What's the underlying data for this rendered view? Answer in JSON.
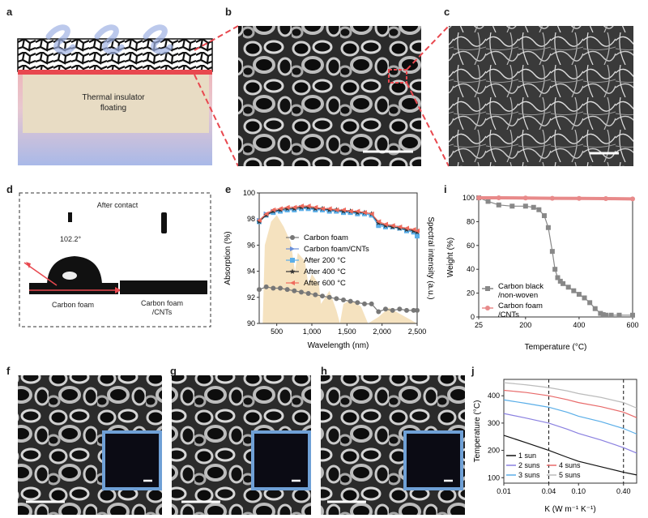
{
  "panels": {
    "a": {
      "letter": "a",
      "insulator_label_1": "Thermal insulator",
      "insulator_label_2": "floating"
    },
    "b": {
      "letter": "b"
    },
    "c": {
      "letter": "c"
    },
    "d": {
      "letter": "d",
      "title": "After contact",
      "angle": "102.2°",
      "left_label": "Carbon foam",
      "right_label_1": "Carbon foam",
      "right_label_2": "/CNTs"
    },
    "e": {
      "letter": "e"
    },
    "i": {
      "letter": "i"
    },
    "f": {
      "letter": "f"
    },
    "g": {
      "letter": "g"
    },
    "h": {
      "letter": "h"
    },
    "j": {
      "letter": "j"
    }
  },
  "colors": {
    "red_accent": "#e8484f",
    "inset_border": "#6fa0d6",
    "spectrum_fill": "#f4dfb8",
    "carbon_black": "#888888",
    "carbon_foam_cnt_tga": "#e88a8a"
  },
  "chart_data": [
    {
      "type": "line",
      "panel": "e",
      "xlabel": "Wavelength (nm)",
      "ylabel": "Absorption (%)",
      "y2label": "Spectral intensity (a.u.)",
      "xlim": [
        250,
        2500
      ],
      "ylim": [
        90,
        100
      ],
      "xticks": [
        500,
        1000,
        1500,
        2000,
        2500
      ],
      "xtick_labels": [
        "500",
        "1,000",
        "1,500",
        "2,000",
        "2,500"
      ],
      "yticks": [
        90,
        92,
        94,
        96,
        98,
        100
      ],
      "legend_position": "center",
      "x": [
        250,
        350,
        450,
        550,
        650,
        750,
        850,
        950,
        1050,
        1150,
        1250,
        1350,
        1450,
        1550,
        1650,
        1750,
        1850,
        1950,
        2050,
        2150,
        2250,
        2350,
        2450,
        2500
      ],
      "series": [
        {
          "name": "Carbon foam",
          "color": "#777777",
          "marker": "circle",
          "values": [
            92.6,
            92.8,
            92.7,
            92.7,
            92.6,
            92.5,
            92.4,
            92.3,
            92.2,
            92.1,
            92.0,
            91.9,
            91.8,
            91.7,
            91.6,
            91.5,
            91.5,
            90.9,
            91.1,
            91.0,
            91.1,
            91.0,
            91.0,
            91.0
          ]
        },
        {
          "name": "Carbon foam/CNTs",
          "color": "#6a8fd8",
          "marker": "triangle-right",
          "values": [
            97.9,
            98.4,
            98.6,
            98.6,
            98.7,
            98.8,
            98.9,
            98.8,
            98.8,
            98.7,
            98.7,
            98.6,
            98.6,
            98.5,
            98.5,
            98.4,
            98.3,
            97.6,
            97.5,
            97.4,
            97.3,
            97.2,
            97.1,
            96.8
          ]
        },
        {
          "name": "After 200 °C",
          "color": "#5aaee8",
          "marker": "square",
          "values": [
            97.8,
            98.3,
            98.5,
            98.6,
            98.7,
            98.7,
            98.8,
            98.8,
            98.7,
            98.7,
            98.6,
            98.6,
            98.5,
            98.5,
            98.4,
            98.4,
            98.3,
            97.5,
            97.4,
            97.4,
            97.3,
            97.1,
            97.0,
            96.7
          ]
        },
        {
          "name": "After 400 °C",
          "color": "#333333",
          "marker": "star",
          "values": [
            97.8,
            98.3,
            98.6,
            98.7,
            98.8,
            98.8,
            98.9,
            98.9,
            98.8,
            98.8,
            98.7,
            98.7,
            98.6,
            98.6,
            98.5,
            98.5,
            98.4,
            97.7,
            97.5,
            97.4,
            97.3,
            97.2,
            97.1,
            97.0
          ]
        },
        {
          "name": "After 600 °C",
          "color": "#ef6a5c",
          "marker": "triangle-left",
          "values": [
            97.9,
            98.4,
            98.7,
            98.8,
            98.9,
            98.9,
            99.0,
            99.0,
            98.9,
            98.8,
            98.8,
            98.7,
            98.7,
            98.6,
            98.6,
            98.5,
            98.4,
            97.8,
            97.6,
            97.5,
            97.4,
            97.3,
            97.2,
            97.1
          ]
        }
      ]
    },
    {
      "type": "line",
      "panel": "i",
      "xlabel": "Temperature (°C)",
      "ylabel": "Weight (%)",
      "xlim": [
        25,
        600
      ],
      "ylim": [
        0,
        100
      ],
      "xticks": [
        25,
        200,
        400,
        600
      ],
      "yticks": [
        0,
        20,
        40,
        60,
        80,
        100
      ],
      "legend_position": "bottom-left",
      "series": [
        {
          "name": "Carbon black\n/non-woven",
          "legend_line_1": "Carbon black",
          "legend_line_2": "/non-woven",
          "color": "#888888",
          "marker": "square",
          "x": [
            25,
            60,
            100,
            150,
            200,
            230,
            250,
            270,
            285,
            300,
            310,
            320,
            330,
            340,
            360,
            380,
            400,
            420,
            440,
            460,
            480,
            490,
            500,
            520,
            550,
            600
          ],
          "values": [
            100,
            97,
            94,
            93,
            93,
            92,
            90,
            85,
            75,
            55,
            40,
            33,
            30,
            28,
            25,
            22,
            19,
            16,
            12,
            7,
            3,
            2,
            1.5,
            1.5,
            1.5,
            1.5
          ]
        },
        {
          "name": "Carbon foam\n/CNTs",
          "legend_line_1": "Carbon foam",
          "legend_line_2": "/CNTs",
          "color": "#e88a8a",
          "marker": "circle",
          "x": [
            25,
            100,
            200,
            300,
            400,
            500,
            600
          ],
          "values": [
            100,
            100,
            99.8,
            99.6,
            99.5,
            99.3,
            99.1
          ]
        }
      ]
    },
    {
      "type": "line",
      "panel": "j",
      "xlabel": "K (W m⁻¹ K⁻¹)",
      "ylabel": "Temperature (°C)",
      "xscale": "log",
      "xlim": [
        0.01,
        0.6
      ],
      "ylim": [
        80,
        460
      ],
      "xticks": [
        0.01,
        0.04,
        0.1,
        0.4
      ],
      "xtick_labels": [
        "0.01",
        "0.04",
        "0.10",
        "0.40"
      ],
      "yticks": [
        100,
        200,
        300,
        400
      ],
      "vlines": [
        0.04,
        0.4
      ],
      "legend_position": "bottom-left",
      "x": [
        0.01,
        0.02,
        0.04,
        0.07,
        0.1,
        0.2,
        0.4,
        0.6
      ],
      "series": [
        {
          "name": "1 sun",
          "color": "#111111",
          "values": [
            255,
            228,
            200,
            175,
            160,
            140,
            120,
            110
          ]
        },
        {
          "name": "2 suns",
          "color": "#8a80e0",
          "values": [
            335,
            318,
            300,
            278,
            262,
            238,
            210,
            190
          ]
        },
        {
          "name": "3 suns",
          "color": "#5aaee8",
          "values": [
            385,
            372,
            358,
            340,
            325,
            305,
            280,
            260
          ]
        },
        {
          "name": "4 suns",
          "color": "#e86a6a",
          "values": [
            420,
            412,
            400,
            386,
            375,
            360,
            340,
            320
          ]
        },
        {
          "name": "5 suns",
          "color": "#bbbbbb",
          "values": [
            448,
            440,
            430,
            418,
            408,
            394,
            375,
            355
          ]
        }
      ]
    }
  ]
}
